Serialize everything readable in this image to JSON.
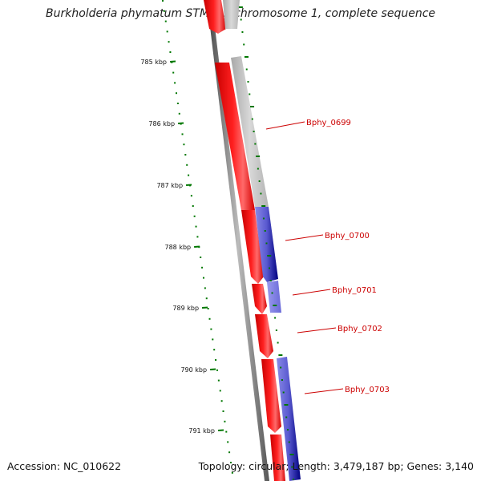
{
  "title": "Burkholderia phymatum STM815 chromosome 1, complete sequence",
  "accession": "Accession: NC_010622",
  "stats": "Topology: circular; Length: 3,479,187 bp; Genes: 3,140",
  "tick_labels": [
    "785 kbp",
    "786 kbp",
    "787 kbp",
    "788 kbp",
    "789 kbp",
    "790 kbp",
    "791 kbp"
  ],
  "gene_labels": [
    "Bphy_0699",
    "Bphy_0700",
    "Bphy_0701",
    "Bphy_0702",
    "Bphy_0703"
  ],
  "colors": {
    "forward_cds": "#ff0000",
    "reverse_cds": "#2222aa",
    "unannotated": "#bbbbbb",
    "backbone": "#777777",
    "gc_ticks": "#007700",
    "label_text": "#cc0000"
  }
}
